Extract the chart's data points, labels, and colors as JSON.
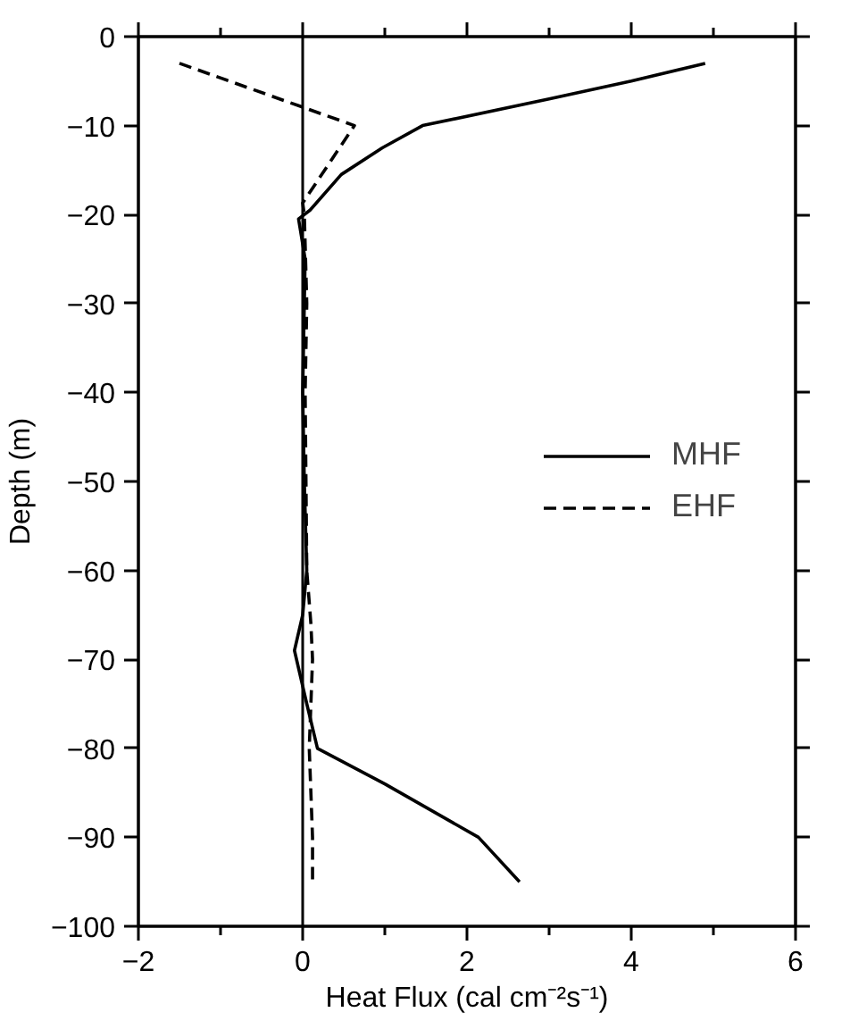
{
  "chart_data": {
    "type": "line",
    "xlabel": "Heat Flux (cal cm⁻²s⁻¹)",
    "ylabel": "Depth (m)",
    "xlim": [
      -2,
      6
    ],
    "ylim": [
      -100,
      0
    ],
    "xticks": [
      -2,
      {
        "value": -1,
        "label": null
      },
      0,
      {
        "value": 1,
        "label": null
      },
      2,
      {
        "value": 3,
        "label": null
      },
      4,
      {
        "value": 5,
        "label": null
      },
      6
    ],
    "yticks": [
      -100,
      -90,
      -80,
      -70,
      -60,
      -50,
      -40,
      -30,
      -20,
      -10,
      0
    ],
    "legend": "right",
    "ref_lines": [
      {
        "axis": "x",
        "value": 0,
        "color": "#000000",
        "line_style": "solid"
      }
    ],
    "series": [
      {
        "name": "MHF",
        "color": "#000000",
        "line_style": "solid",
        "x": [
          4.9,
          4.0,
          3.0,
          1.46,
          0.97,
          0.47,
          0.09,
          -0.05,
          0.03,
          0.0,
          0.02,
          0.05,
          0.0,
          -0.1,
          0.05,
          0.18,
          1.0,
          2.14,
          2.64
        ],
        "values": [
          -3,
          -5,
          -7,
          -10,
          -12.5,
          -15.5,
          -19.5,
          -20.5,
          -25,
          -40,
          -50,
          -60,
          -65,
          -69,
          -75,
          -80,
          -84,
          -90,
          -95
        ]
      },
      {
        "name": "EHF",
        "color": "#000000",
        "line_style": "dashed",
        "x": [
          -1.5,
          0.63,
          0.0,
          0.02,
          0.05,
          0.03,
          0.05,
          0.1,
          0.12,
          0.08,
          0.12,
          0.12
        ],
        "values": [
          -3,
          -10,
          -18.7,
          -20,
          -30,
          -40,
          -60,
          -66,
          -70,
          -80,
          -90,
          -95
        ]
      }
    ]
  }
}
